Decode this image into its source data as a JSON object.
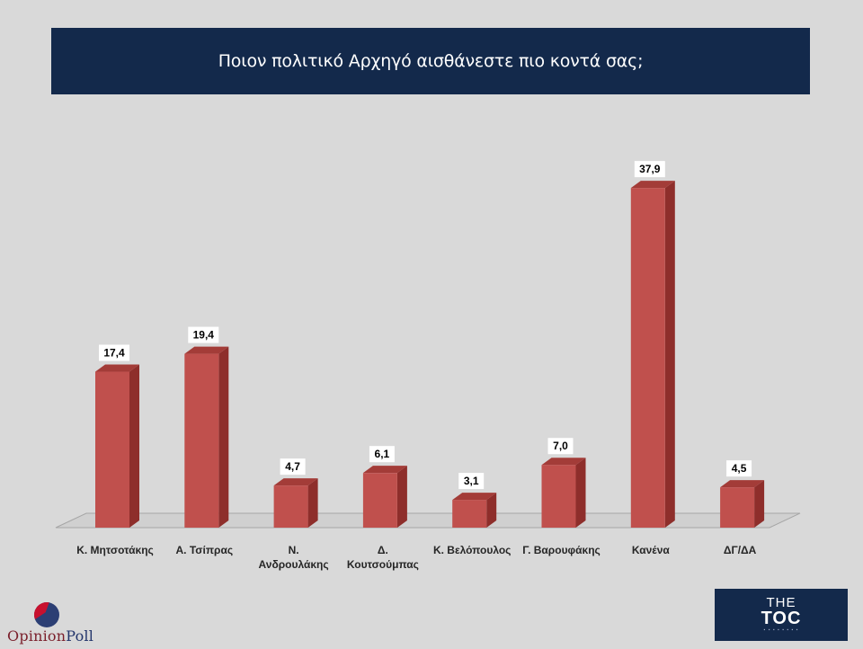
{
  "title": "Ποιον πολιτικό Αρχηγό αισθάνεστε πιο κοντά σας;",
  "chart_data": {
    "type": "bar",
    "title": "Ποιον πολιτικό Αρχηγό αισθάνεστε πιο κοντά σας;",
    "categories": [
      "Κ. Μητσοτάκης",
      "Α. Τσίπρας",
      "Ν. Ανδρουλάκης",
      "Δ. Κουτσούμπας",
      "Κ. Βελόπουλος",
      "Γ. Βαρουφάκης",
      "Κανένα",
      "ΔΓ/ΔΑ"
    ],
    "category_lines": [
      [
        "Κ. Μητσοτάκης"
      ],
      [
        "Α. Τσίπρας"
      ],
      [
        "Ν.",
        "Ανδρουλάκης"
      ],
      [
        "Δ.",
        "Κουτσούμπας"
      ],
      [
        "Κ. Βελόπουλος"
      ],
      [
        "Γ. Βαρουφάκης"
      ],
      [
        "Κανένα"
      ],
      [
        "ΔΓ/ΔΑ"
      ]
    ],
    "values": [
      17.4,
      19.4,
      4.7,
      6.1,
      3.1,
      7.0,
      37.9,
      4.5
    ],
    "value_labels": [
      "17,4",
      "19,4",
      "4,7",
      "6,1",
      "3,1",
      "7,0",
      "37,9",
      "4,5"
    ],
    "bar_color": "#c0504d",
    "bar_side_color": "#8e2e2b",
    "bar_top_color": "#a33c38",
    "grid": false,
    "legend": "none"
  },
  "logos": {
    "left_part1": "Opinion",
    "left_part2": "Poll",
    "right_the": "THE",
    "right_main": "TOC"
  }
}
